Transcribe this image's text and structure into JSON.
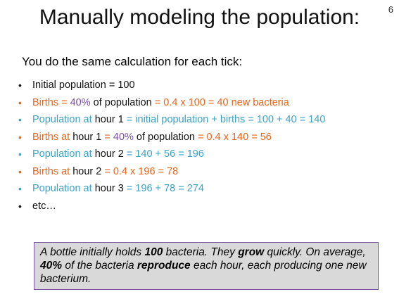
{
  "slide_number": "6",
  "title": "Manually modeling the population:",
  "subtitle": "You do the same calculation for each tick:",
  "colors": {
    "black": "#111111",
    "orange": "#e8661c",
    "teal": "#3aa2c6",
    "purple": "#7f4fa3",
    "box_border": "#7a4f9b",
    "box_bg": "#d9d9d9"
  },
  "bullets": [
    {
      "bullet_color": "black",
      "segments": [
        {
          "text": "Initial population = 100",
          "color": "black"
        }
      ]
    },
    {
      "bullet_color": "orange",
      "segments": [
        {
          "text": "Births = ",
          "color": "orange"
        },
        {
          "text": "40%",
          "color": "purple"
        },
        {
          "text": " of population ",
          "color": "black"
        },
        {
          "text": "= 0.4 x 100 = 40 new bacteria",
          "color": "orange"
        }
      ]
    },
    {
      "bullet_color": "teal",
      "segments": [
        {
          "text": "Population at ",
          "color": "teal"
        },
        {
          "text": "hour 1",
          "color": "black"
        },
        {
          "text": " = initial population + births = 100 + 40 = 140",
          "color": "teal"
        }
      ]
    },
    {
      "bullet_color": "orange",
      "segments": [
        {
          "text": "Births at ",
          "color": "orange"
        },
        {
          "text": "hour 1",
          "color": "black"
        },
        {
          "text": " = ",
          "color": "orange"
        },
        {
          "text": "40%",
          "color": "purple"
        },
        {
          "text": " of population ",
          "color": "black"
        },
        {
          "text": "= 0.4 x 140 = 56",
          "color": "orange"
        }
      ]
    },
    {
      "bullet_color": "teal",
      "segments": [
        {
          "text": "Population at ",
          "color": "teal"
        },
        {
          "text": "hour 2",
          "color": "black"
        },
        {
          "text": " = 140 + 56 = 196",
          "color": "teal"
        }
      ]
    },
    {
      "bullet_color": "orange",
      "segments": [
        {
          "text": "Births at ",
          "color": "orange"
        },
        {
          "text": "hour 2",
          "color": "black"
        },
        {
          "text": " = 0.4 x 196 = 78",
          "color": "orange"
        }
      ]
    },
    {
      "bullet_color": "teal",
      "segments": [
        {
          "text": "Population at ",
          "color": "teal"
        },
        {
          "text": "hour 3",
          "color": "black"
        },
        {
          "text": " = 196 + 78 = 274",
          "color": "teal"
        }
      ]
    },
    {
      "bullet_color": "black",
      "segments": [
        {
          "text": "etc…",
          "color": "black"
        }
      ]
    }
  ],
  "info_box": {
    "segments": [
      {
        "text": "A bottle initially holds ",
        "bold": false
      },
      {
        "text": "100",
        "bold": true
      },
      {
        "text": " bacteria.  They ",
        "bold": false
      },
      {
        "text": "grow",
        "bold": true
      },
      {
        "text": " quickly.  On average, ",
        "bold": false
      },
      {
        "text": "40%",
        "bold": true
      },
      {
        "text": " of the bacteria ",
        "bold": false
      },
      {
        "text": "reproduce",
        "bold": true
      },
      {
        "text": " each hour, each producing one new bacterium.",
        "bold": false
      }
    ]
  }
}
